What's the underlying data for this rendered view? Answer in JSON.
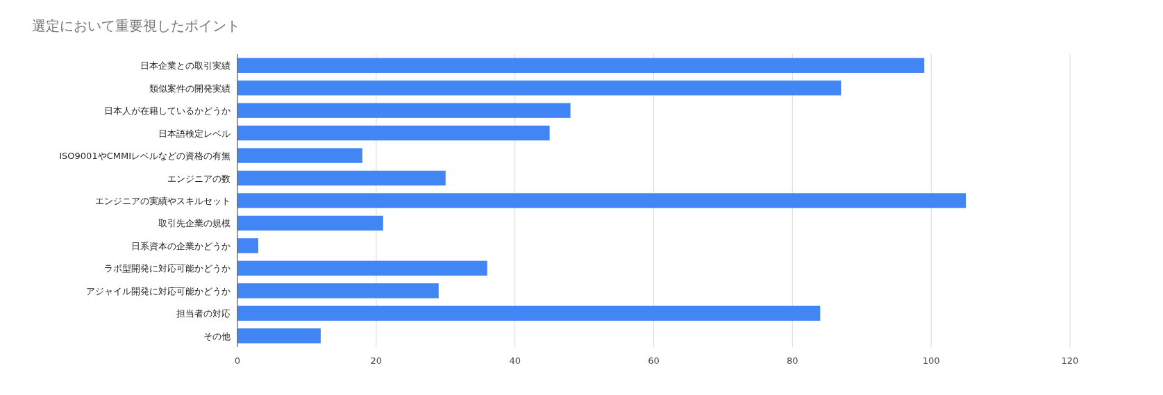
{
  "chart_data": {
    "type": "bar",
    "orientation": "horizontal",
    "title": "選定において重要視したポイント",
    "categories": [
      "日本企業との取引実績",
      "類似案件の開発実績",
      "日本人が在籍しているかどうか",
      "日本語検定レベル",
      "ISO9001やCMMIレベルなどの資格の有無",
      "エンジニアの数",
      "エンジニアの実績やスキルセット",
      "取引先企業の規模",
      "日系資本の企業かどうか",
      "ラボ型開発に対応可能かどうか",
      "アジャイル開発に対応可能かどうか",
      "担当者の対応",
      "その他"
    ],
    "values": [
      99,
      87,
      48,
      45,
      18,
      30,
      105,
      21,
      3,
      36,
      29,
      84,
      12
    ],
    "color": "#4285f4",
    "xlim": [
      0,
      120
    ],
    "xticks": [
      0,
      20,
      40,
      60,
      80,
      100,
      120
    ],
    "grid": "x"
  }
}
